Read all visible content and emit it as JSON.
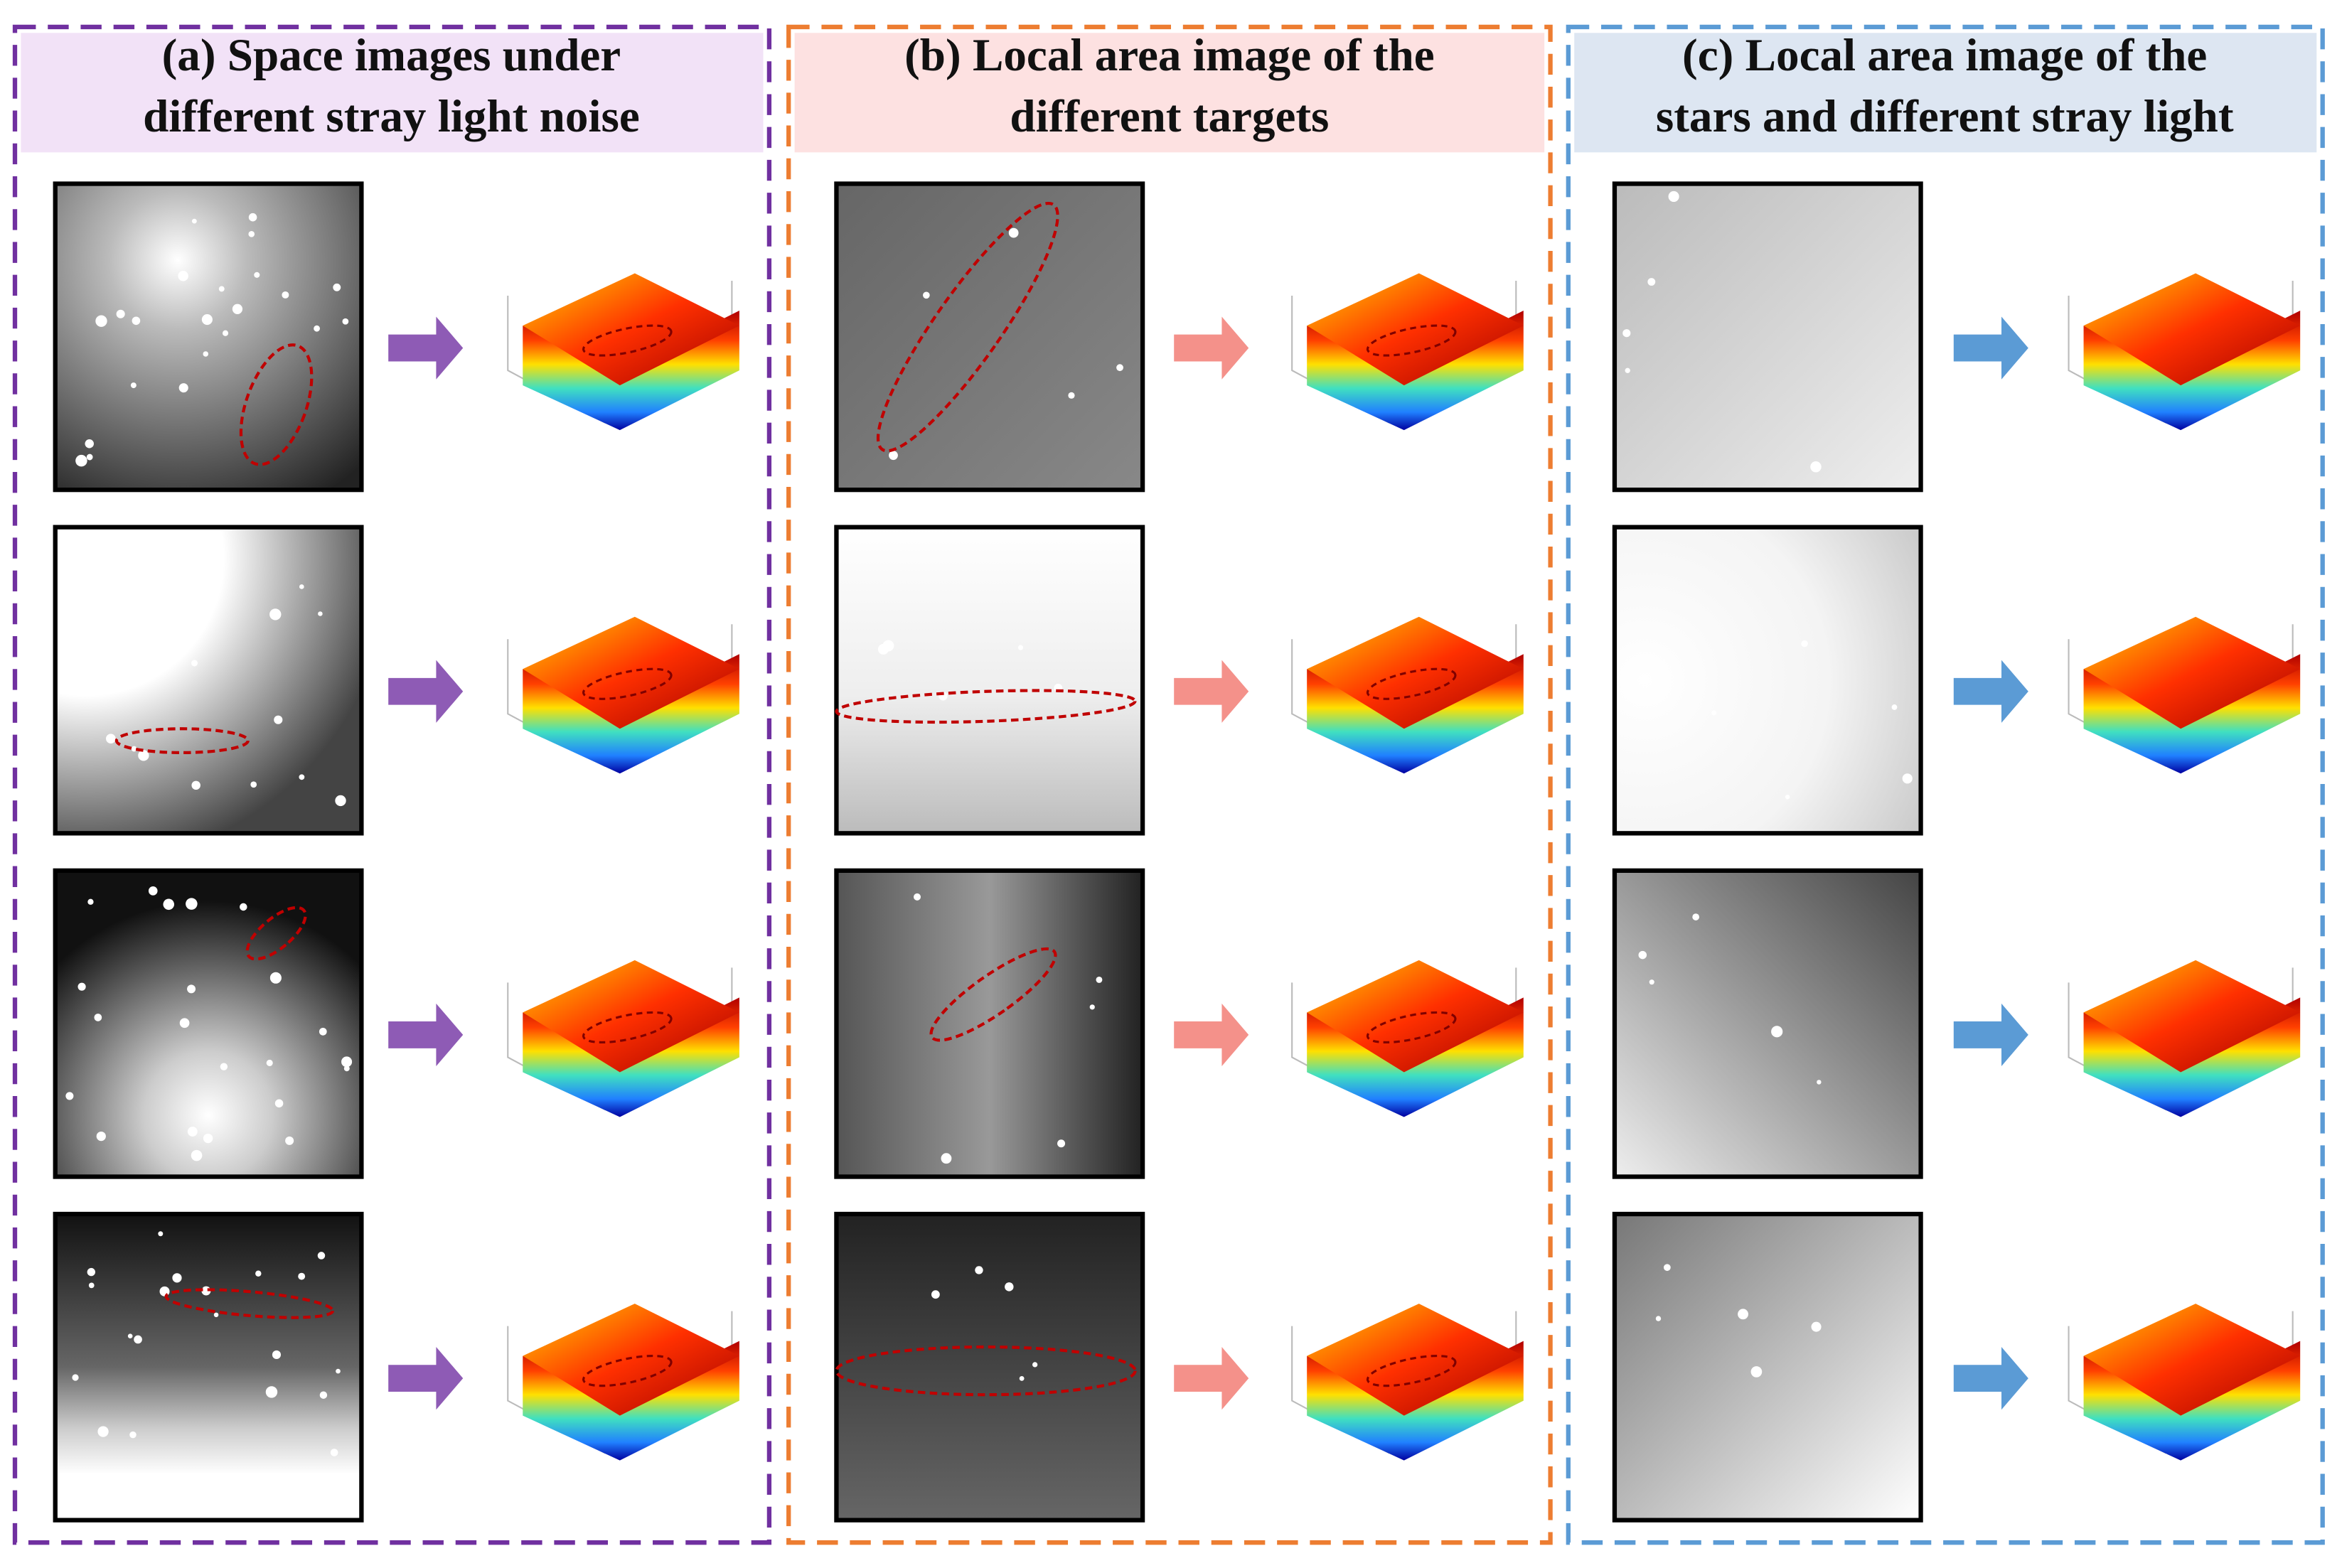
{
  "panels": [
    {
      "title": [
        "(a) Space images under",
        "different stray light noise"
      ]
    },
    {
      "title": [
        "(b) Local area image of the",
        "different targets"
      ]
    },
    {
      "title": [
        "(c) Local area image of the",
        "stars and  different stray light"
      ]
    }
  ]
}
